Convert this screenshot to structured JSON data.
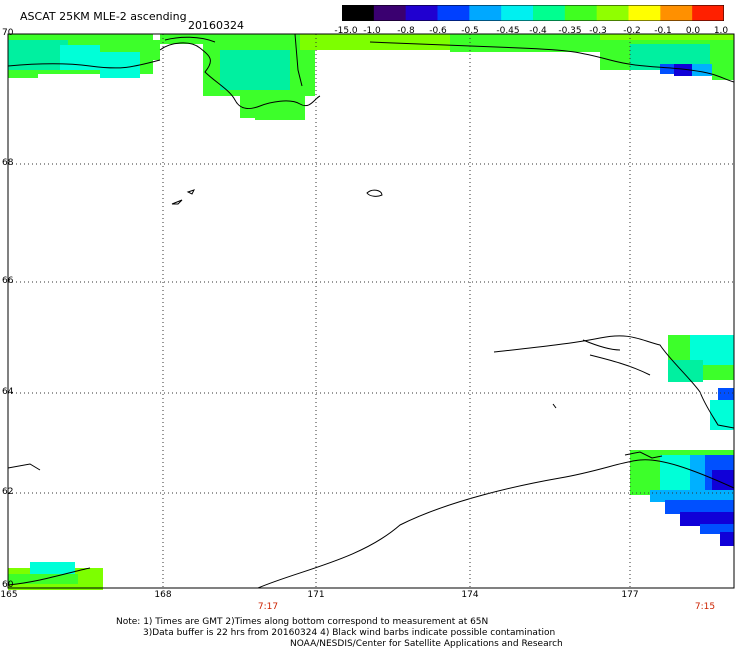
{
  "header": {
    "title": "ASCAT 25KM MLE-2 ascending",
    "date": "20160324"
  },
  "colorbar": {
    "labels": [
      "-15.0",
      "-1.0",
      "-0.8",
      "-0.6",
      "-0.5",
      "-0.45",
      "-0.4",
      "-0.35",
      "-0.3",
      "-0.2",
      "-0.1",
      "0.0",
      "1.0"
    ],
    "colors": [
      "#000000",
      "#3a0070",
      "#2000d0",
      "#0040ff",
      "#00a8ff",
      "#00f0f0",
      "#00ff90",
      "#40ff20",
      "#90ff00",
      "#ffff00",
      "#ff9000",
      "#ff2000"
    ]
  },
  "axes": {
    "lat_labels": [
      "70",
      "68",
      "66",
      "64",
      "62",
      "60"
    ],
    "lon_labels": [
      "165",
      "168",
      "171",
      "174",
      "177"
    ],
    "time_labels": [
      "7:17",
      "7:15"
    ]
  },
  "notes": {
    "line1": "Note: 1) Times are GMT 2)Times along bottom correspond to measurement at 65N",
    "line2": "3)Data buffer is 22 hrs from 20160324 4) Black wind barbs indicate possible contamination",
    "line3": "NOAA/NESDIS/Center for Satellite Applications and Research"
  },
  "palette": {
    "green": "#3dff2a",
    "lime": "#7dff00",
    "cyan": "#00ffd8",
    "teal": "#00f0a0",
    "blue": "#0050ff",
    "darkblue": "#1000d8",
    "lightblue": "#00b0ff"
  }
}
